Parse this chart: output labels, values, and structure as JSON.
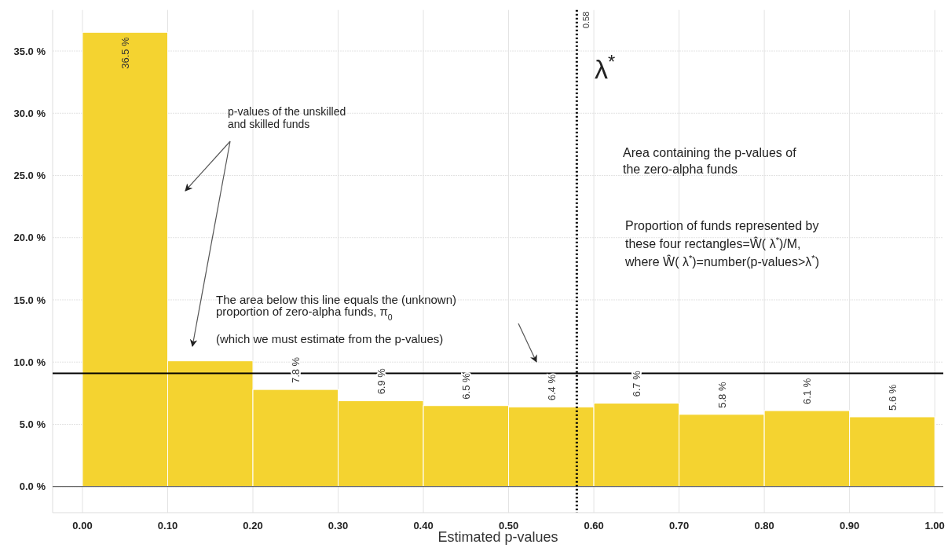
{
  "chart_data": {
    "type": "histogram",
    "xlabel": "Estimated p-values",
    "bins": [
      0,
      0.1,
      0.2,
      0.3,
      0.4,
      0.5,
      0.6,
      0.7,
      0.8,
      0.9,
      1.0
    ],
    "values": [
      36.5,
      10.1,
      7.8,
      6.9,
      6.5,
      6.4,
      6.7,
      5.8,
      6.1,
      5.6
    ],
    "value_labels": [
      "36.5 %",
      null,
      "7.8 %",
      "6.9 %",
      "6.5 %",
      "6.4 %",
      "6.7 %",
      "5.8 %",
      "6.1 %",
      "5.6 %"
    ],
    "color": "#f4d330",
    "xlim": [
      -0.035,
      1.01
    ],
    "xticks": [
      {
        "value": 0,
        "label": "0.00"
      },
      {
        "value": 0.1,
        "label": "0.10"
      },
      {
        "value": 0.2,
        "label": "0.20"
      },
      {
        "value": 0.3,
        "label": "0.30"
      },
      {
        "value": 0.4,
        "label": "0.40"
      },
      {
        "value": 0.5,
        "label": "0.50"
      },
      {
        "value": 0.6,
        "label": "0.60"
      },
      {
        "value": 0.7,
        "label": "0.70"
      },
      {
        "value": 0.8,
        "label": "0.80"
      },
      {
        "value": 0.9,
        "label": "0.90"
      },
      {
        "value": 1.0,
        "label": "1.00"
      }
    ],
    "ylim": [
      -2.1,
      38.3
    ],
    "yticks": [
      {
        "value": 0,
        "label": "0.0 %"
      },
      {
        "value": 5,
        "label": "5.0 %"
      },
      {
        "value": 10,
        "label": "10.0 %"
      },
      {
        "value": 15,
        "label": "15.0 %"
      },
      {
        "value": 20,
        "label": "20.0 %"
      },
      {
        "value": 25,
        "label": "25.0 %"
      },
      {
        "value": 30,
        "label": "30.0 %"
      },
      {
        "value": 35,
        "label": "35.0 %"
      }
    ],
    "grid": true,
    "ref_lines": [
      {
        "axis": "y",
        "value": 9.1,
        "line_style": "solid"
      },
      {
        "axis": "x",
        "value": 0.58,
        "label": "0.58",
        "line_style": "dotted"
      }
    ],
    "annotations": [
      "λ$^{*}$",
      "p-values of the unskilled\nand skilled funds",
      "Area containing the p-values of\nthe zero-alpha funds",
      "Proportion of funds represented by\nthese four rectangles=Ŵ( λ$^{*}$)/M,\nwhere Ŵ( λ$^{*}$)=number(p-values>λ$^{*}$)",
      "The area below this line equals the (unknown)\nproportion of zero-alpha funds, π$_{0}$",
      "(which we must estimate from the p-values)"
    ]
  }
}
